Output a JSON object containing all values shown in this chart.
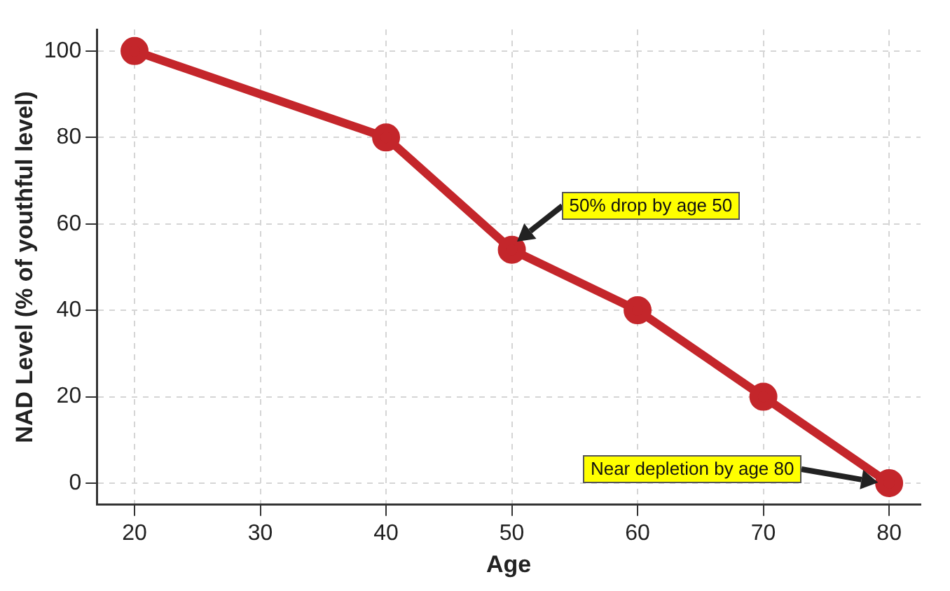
{
  "chart_data": {
    "type": "line",
    "xlabel": "Age",
    "ylabel": "NAD Level (% of youthful level)",
    "x": [
      20,
      40,
      50,
      60,
      70,
      80
    ],
    "series": [
      {
        "color": "#c4262b",
        "values": [
          100,
          80,
          54,
          40,
          20,
          0
        ]
      }
    ],
    "xlim": [
      17,
      82.5
    ],
    "xticks": [
      20,
      30,
      40,
      50,
      60,
      70,
      80
    ],
    "ylim": [
      -5,
      105
    ],
    "yticks": [
      0,
      20,
      40,
      60,
      80,
      100
    ],
    "grid": true,
    "legend": false,
    "marker": "circle",
    "line_style": "solid",
    "annotations": [
      "50% drop by age 50",
      "Near depletion by age 80"
    ]
  }
}
